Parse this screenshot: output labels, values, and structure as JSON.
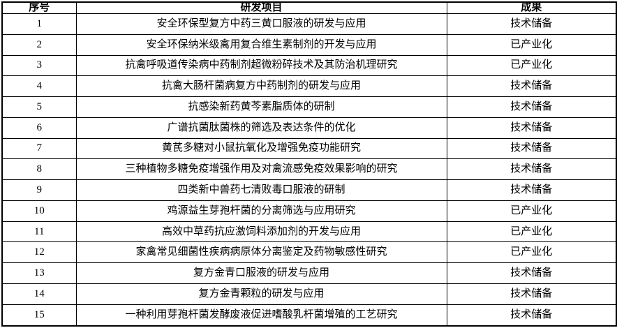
{
  "colors": {
    "border": "#000000",
    "text": "#000000",
    "background": "#ffffff"
  },
  "table": {
    "headers": {
      "no": "序号",
      "project": "研发项目",
      "result": "成果"
    },
    "rows": [
      {
        "no": "1",
        "project": "安全环保型复方中药三黄口服液的研发与应用",
        "result": "技术储备"
      },
      {
        "no": "2",
        "project": "安全环保纳米级禽用复合维生素制剂的开发与应用",
        "result": "已产业化"
      },
      {
        "no": "3",
        "project": "抗禽呼吸道传染病中药制剂超微粉碎技术及其防治机理研究",
        "result": "已产业化"
      },
      {
        "no": "4",
        "project": "抗禽大肠杆菌病复方中药制剂的研发与应用",
        "result": "技术储备"
      },
      {
        "no": "5",
        "project": "抗感染新药黄芩素脂质体的研制",
        "result": "技术储备"
      },
      {
        "no": "6",
        "project": "广谱抗菌肽菌株的筛选及表达条件的优化",
        "result": "技术储备"
      },
      {
        "no": "7",
        "project": "黄芪多糖对小鼠抗氧化及增强免疫功能研究",
        "result": "技术储备"
      },
      {
        "no": "8",
        "project": "三种植物多糖免疫增强作用及对禽流感免疫效果影响的研究",
        "result": "技术储备"
      },
      {
        "no": "9",
        "project": "四类新中兽药七清败毒口服液的研制",
        "result": "技术储备"
      },
      {
        "no": "10",
        "project": "鸡源益生芽孢杆菌的分离筛选与应用研究",
        "result": "已产业化"
      },
      {
        "no": "11",
        "project": "高效中草药抗应激饲料添加剂的开发与应用",
        "result": "已产业化"
      },
      {
        "no": "12",
        "project": "家禽常见细菌性疾病病原体分离鉴定及药物敏感性研究",
        "result": "已产业化"
      },
      {
        "no": "13",
        "project": "复方金青口服液的研发与应用",
        "result": "技术储备"
      },
      {
        "no": "14",
        "project": "复方金青颗粒的研发与应用",
        "result": "技术储备"
      },
      {
        "no": "15",
        "project": "一种利用芽孢杆菌发酵废液促进嗜酸乳杆菌增殖的工艺研究",
        "result": "技术储备"
      }
    ]
  }
}
